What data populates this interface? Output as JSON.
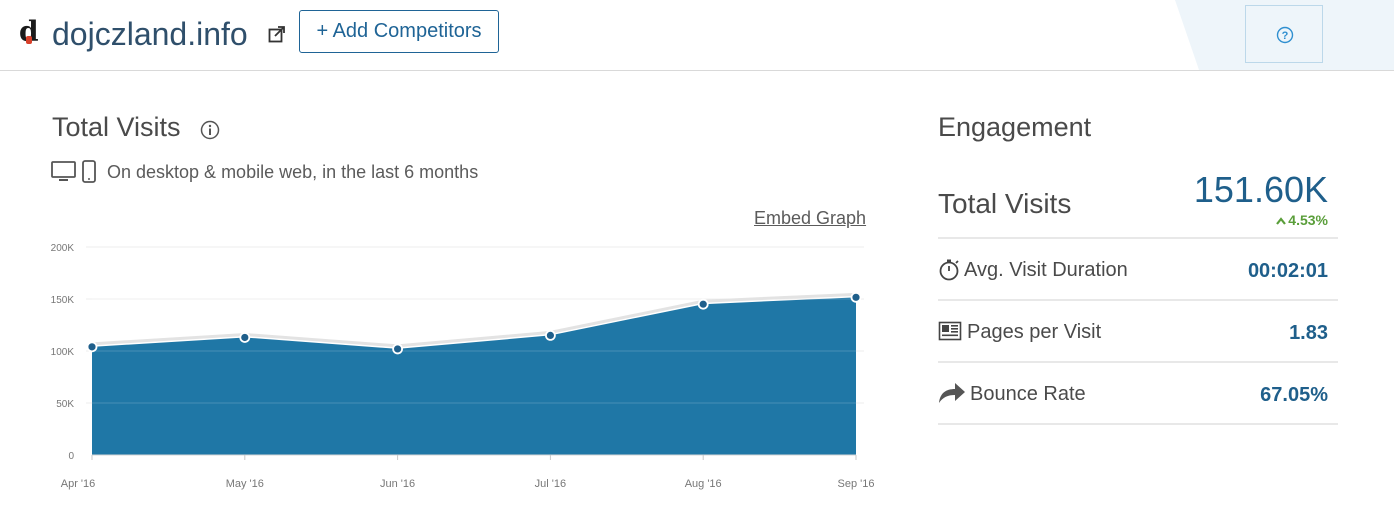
{
  "header": {
    "site_name": "dojczland.info",
    "logo_letter": "d",
    "add_competitors_label": "+ Add Competitors"
  },
  "total_visits": {
    "title": "Total Visits",
    "subtitle": "On desktop & mobile web, in the last 6 months",
    "embed_label": "Embed Graph"
  },
  "chart_data": {
    "type": "area",
    "categories": [
      "Apr '16",
      "May '16",
      "Jun '16",
      "Jul '16",
      "Aug '16",
      "Sep '16"
    ],
    "values": [
      104000,
      113000,
      102000,
      115000,
      145000,
      151600
    ],
    "ylim": [
      0,
      200000
    ],
    "y_ticks": [
      0,
      50000,
      100000,
      150000,
      200000
    ],
    "y_tick_labels": [
      "0",
      "50K",
      "100K",
      "150K",
      "200K"
    ],
    "grid": true,
    "fill_color": "#1f77a6",
    "point_color": "#1f5f8b"
  },
  "engagement": {
    "title": "Engagement",
    "total_visits_label": "Total Visits",
    "total_visits_value": "151.60K",
    "total_visits_change": "4.53%",
    "change_color": "#5a9e3a",
    "metrics": [
      {
        "label": "Avg. Visit Duration",
        "value": "00:02:01",
        "icon": "stopwatch-icon"
      },
      {
        "label": "Pages per Visit",
        "value": "1.83",
        "icon": "pages-icon"
      },
      {
        "label": "Bounce Rate",
        "value": "67.05%",
        "icon": "bounce-arrow-icon"
      }
    ]
  }
}
